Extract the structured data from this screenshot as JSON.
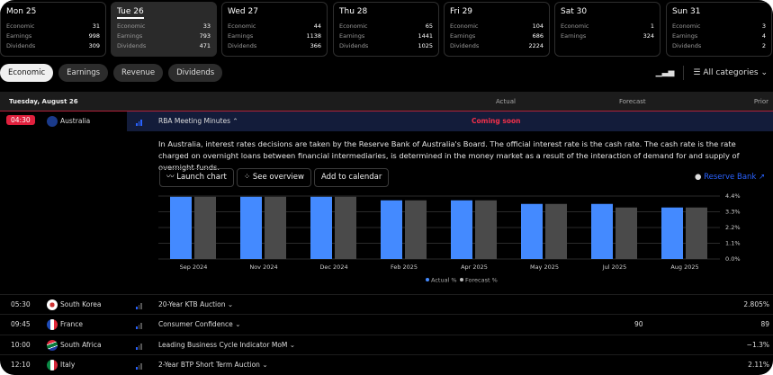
{
  "days": [
    {
      "label": "Mon 25",
      "rows": [
        [
          "Economic",
          "31"
        ],
        [
          "Earnings",
          "998"
        ],
        [
          "Dividends",
          "309"
        ]
      ]
    },
    {
      "label": "Tue 26",
      "rows": [
        [
          "Economic",
          "33"
        ],
        [
          "Earnings",
          "793"
        ],
        [
          "Dividends",
          "471"
        ]
      ]
    },
    {
      "label": "Wed 27",
      "rows": [
        [
          "Economic",
          "44"
        ],
        [
          "Earnings",
          "1138"
        ],
        [
          "Dividends",
          "366"
        ]
      ]
    },
    {
      "label": "Thu 28",
      "rows": [
        [
          "Economic",
          "65"
        ],
        [
          "Earnings",
          "1441"
        ],
        [
          "Dividends",
          "1025"
        ]
      ]
    },
    {
      "label": "Fri 29",
      "rows": [
        [
          "Economic",
          "104"
        ],
        [
          "Earnings",
          "686"
        ],
        [
          "Dividends",
          "2224"
        ]
      ]
    },
    {
      "label": "Sat 30",
      "rows": [
        [
          "Economic",
          "1"
        ],
        [
          "Earnings",
          "324"
        ]
      ]
    },
    {
      "label": "Sun 31",
      "rows": [
        [
          "Economic",
          "3"
        ],
        [
          "Earnings",
          "4"
        ],
        [
          "Dividends",
          "2"
        ]
      ]
    }
  ],
  "tabs": [
    "Economic",
    "Earnings",
    "Revenue",
    "Dividends"
  ],
  "filter_label": "All categories",
  "header": {
    "date": "Tuesday, August 26",
    "actual": "Actual",
    "forecast": "Forecast",
    "prior": "Prior"
  },
  "expanded": {
    "time": "04:30",
    "country": "Australia",
    "event": "RBA Meeting Minutes",
    "status": "Coming soon",
    "description": "In Australia, interest rates decisions are taken by the Reserve Bank of Australia's Board. The official interest rate is the cash rate. The cash rate is the rate charged on overnight loans between financial intermediaries, is determined in the money market as a result of the interaction of demand for and supply of overnight funds.",
    "buttons": [
      "Launch chart",
      "See overview",
      "Add to calendar"
    ],
    "source": "Reserve Bank"
  },
  "chart_data": {
    "type": "bar",
    "categories": [
      "Sep 2024",
      "Nov 2024",
      "Dec 2024",
      "Feb 2025",
      "Apr 2025",
      "May 2025",
      "Jul 2025",
      "Aug 2025"
    ],
    "series": [
      {
        "name": "Actual %",
        "color": "#448aff",
        "values": [
          4.35,
          4.35,
          4.35,
          4.1,
          4.1,
          3.85,
          3.85,
          3.6
        ]
      },
      {
        "name": "Forecast %",
        "color": "#4a4a4a",
        "values": [
          4.35,
          4.35,
          4.35,
          4.1,
          4.1,
          3.85,
          3.6,
          3.6
        ]
      }
    ],
    "yticks": [
      "4.4%",
      "3.3%",
      "2.2%",
      "1.1%",
      "0.0%"
    ],
    "ylim": [
      0,
      4.4
    ]
  },
  "events": [
    {
      "time": "05:30",
      "country": "South Korea",
      "event": "20-Year KTB Auction",
      "forecast": "",
      "prior": "2.805%"
    },
    {
      "time": "09:45",
      "country": "France",
      "event": "Consumer Confidence",
      "forecast": "90",
      "prior": "89"
    },
    {
      "time": "10:00",
      "country": "South Africa",
      "event": "Leading Business Cycle Indicator MoM",
      "forecast": "",
      "prior": "−1.3%"
    },
    {
      "time": "12:10",
      "country": "Italy",
      "event": "2-Year BTP Short Term Auction",
      "forecast": "",
      "prior": "2.11%"
    }
  ]
}
